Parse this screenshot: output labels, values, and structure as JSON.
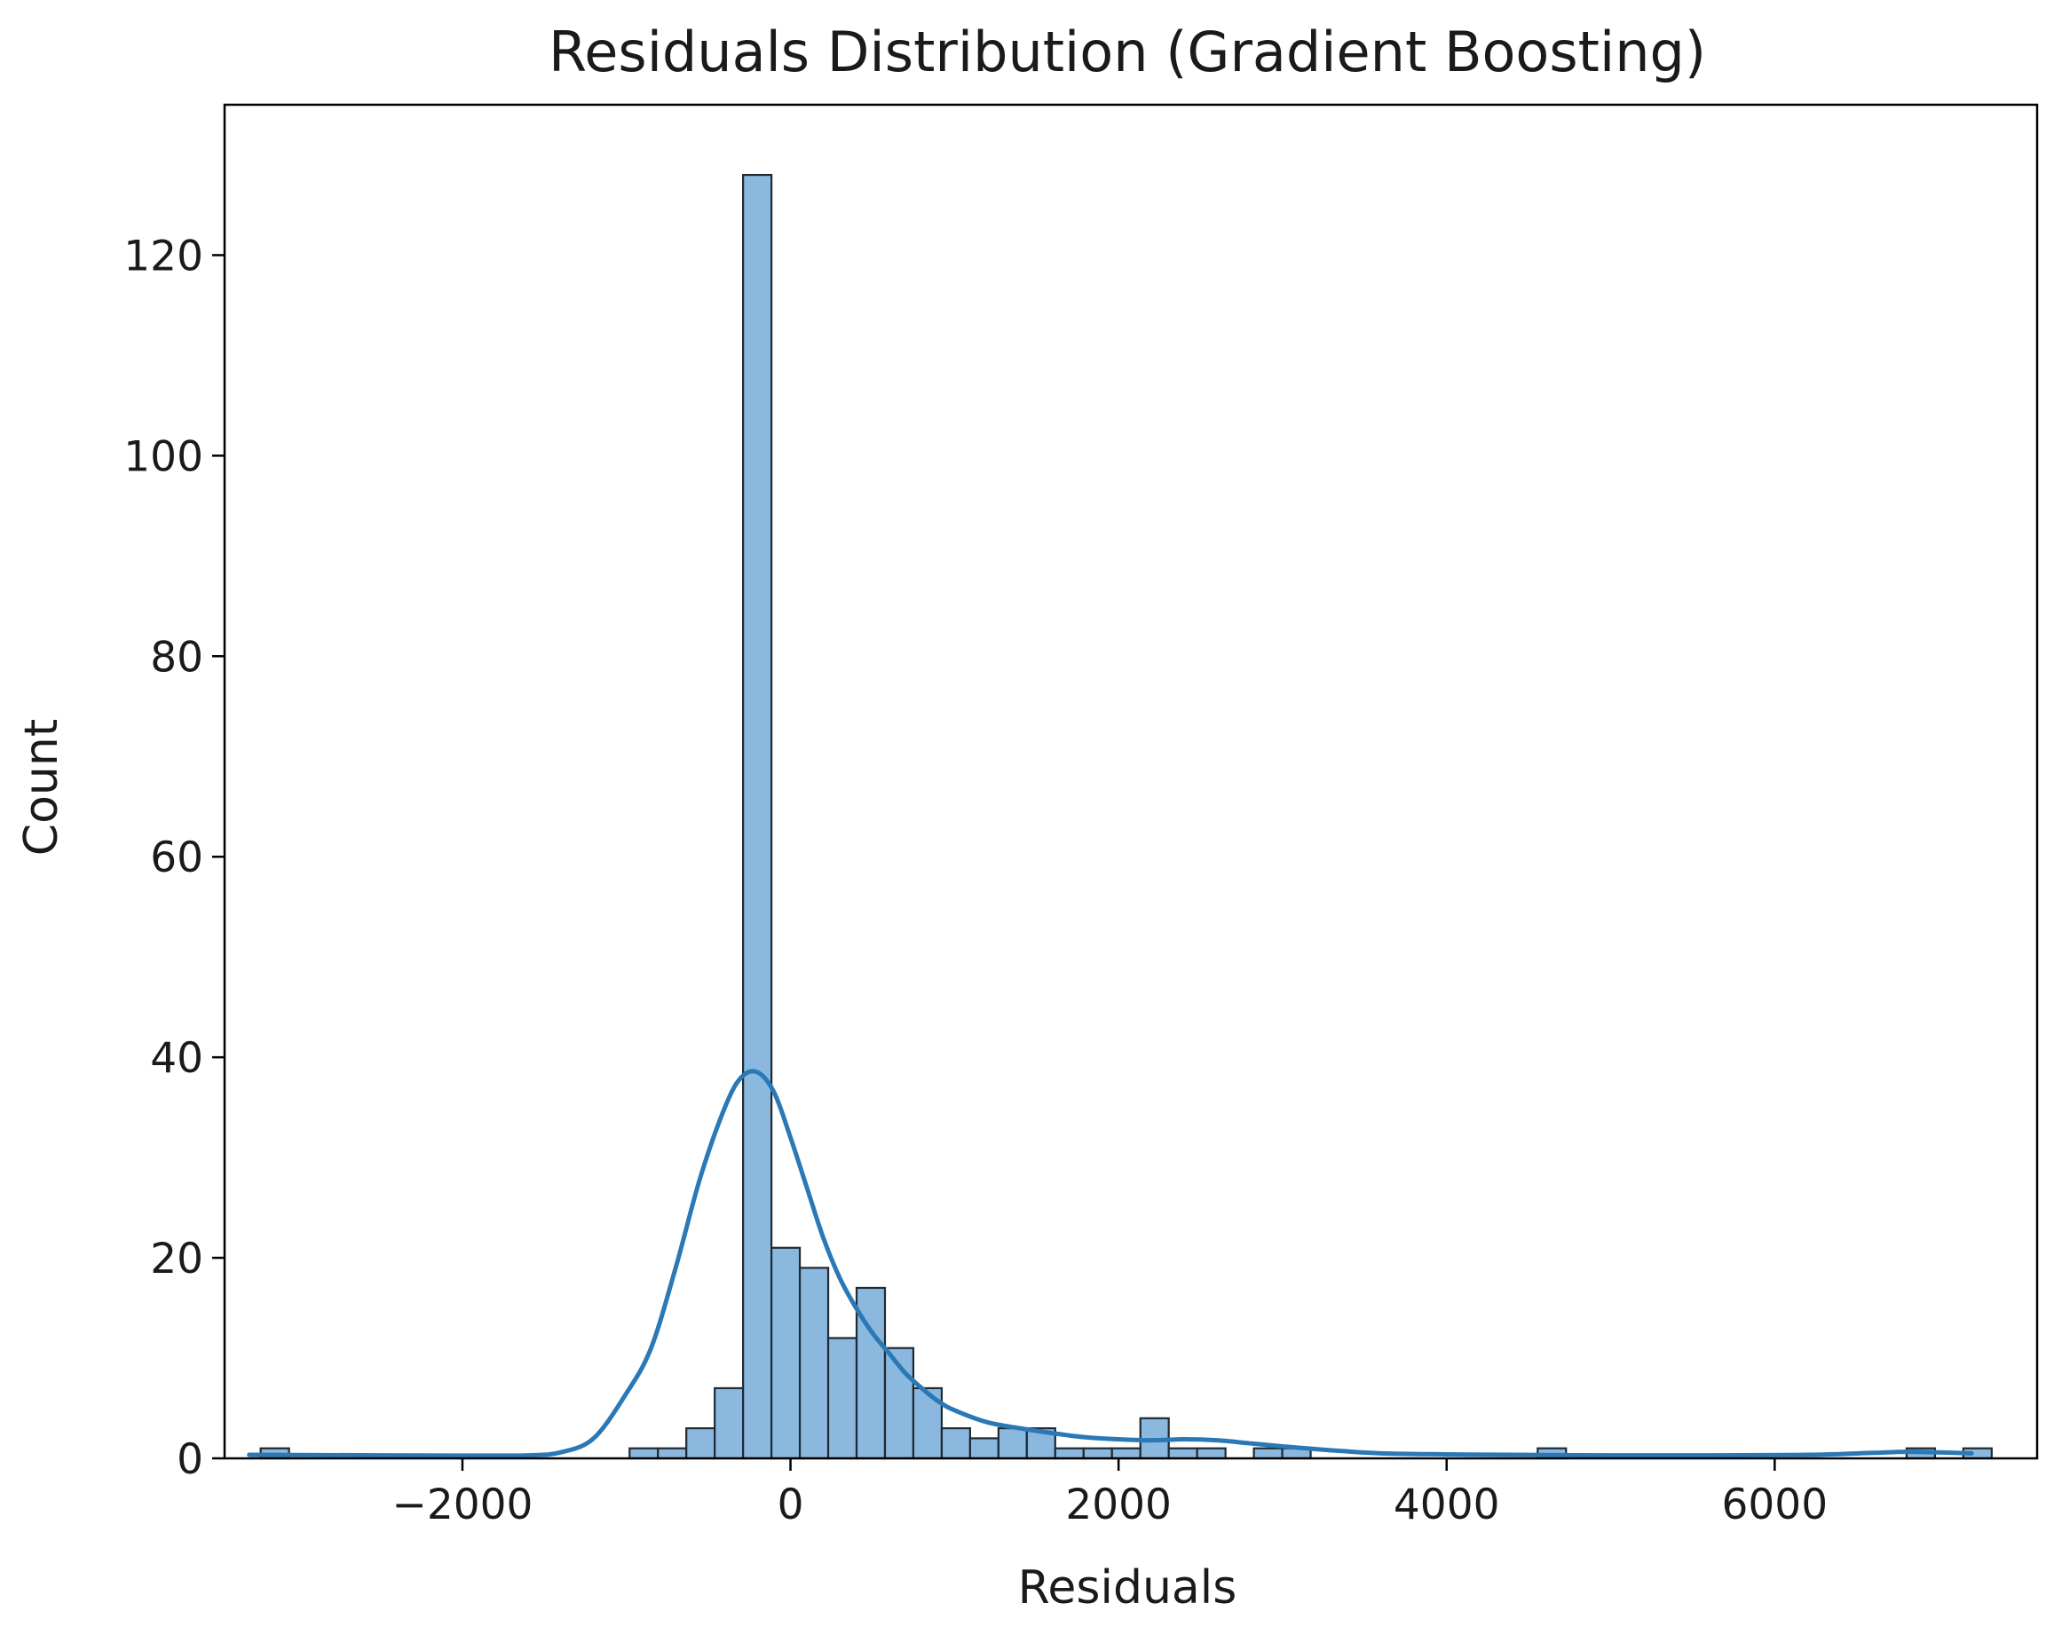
{
  "chart_data": {
    "type": "bar",
    "subtype": "histogram-with-kde",
    "title": "Residuals Distribution (Gradient Boosting)",
    "xlabel": "Residuals",
    "ylabel": "Count",
    "xlim": [
      -3450,
      7600
    ],
    "ylim": [
      0,
      135
    ],
    "xticks": [
      -2000,
      0,
      2000,
      4000,
      6000
    ],
    "xtick_labels": [
      "−2000",
      "0",
      "2000",
      "4000",
      "6000"
    ],
    "yticks": [
      0,
      20,
      40,
      60,
      80,
      100,
      120
    ],
    "ytick_labels": [
      "0",
      "20",
      "40",
      "60",
      "80",
      "100",
      "120"
    ],
    "grid": false,
    "legend": "none",
    "colors": {
      "bar_fill": "#8ab8de",
      "bar_edge": "#1f2a33",
      "kde_line": "#2a78b5",
      "axis": "#000000"
    },
    "bin_start": -3230,
    "bin_width": 173,
    "counts": [
      1,
      0,
      0,
      0,
      0,
      0,
      0,
      0,
      0,
      0,
      0,
      0,
      0,
      1,
      1,
      3,
      7,
      128,
      21,
      19,
      12,
      17,
      11,
      7,
      3,
      2,
      3,
      3,
      1,
      1,
      1,
      4,
      1,
      1,
      0,
      1,
      1,
      0,
      0,
      0,
      0,
      0,
      0,
      0,
      0,
      1,
      0,
      0,
      0,
      0,
      0,
      0,
      0,
      0,
      0,
      0,
      0,
      0,
      1,
      0,
      1
    ],
    "kde": {
      "x": [
        -3300,
        -2500,
        -2000,
        -1600,
        -1400,
        -1200,
        -1000,
        -850,
        -700,
        -550,
        -400,
        -300,
        -200,
        -100,
        0,
        100,
        200,
        300,
        400,
        500,
        600,
        700,
        800,
        900,
        1000,
        1200,
        1400,
        1600,
        1800,
        2000,
        2200,
        2400,
        2600,
        2800,
        3000,
        3300,
        3600,
        4000,
        4400,
        5000,
        5600,
        6200,
        6600,
        6800,
        7000,
        7200
      ],
      "y": [
        0.35,
        0.3,
        0.28,
        0.3,
        0.6,
        2,
        6.5,
        11,
        19,
        28,
        35,
        38,
        38.5,
        36.5,
        32,
        27,
        22,
        18,
        15,
        12.5,
        10.5,
        8.5,
        7,
        5.7,
        4.8,
        3.6,
        3,
        2.5,
        2.1,
        1.9,
        1.8,
        1.9,
        1.8,
        1.5,
        1.2,
        0.8,
        0.5,
        0.4,
        0.35,
        0.3,
        0.3,
        0.35,
        0.55,
        0.65,
        0.6,
        0.5
      ]
    }
  }
}
